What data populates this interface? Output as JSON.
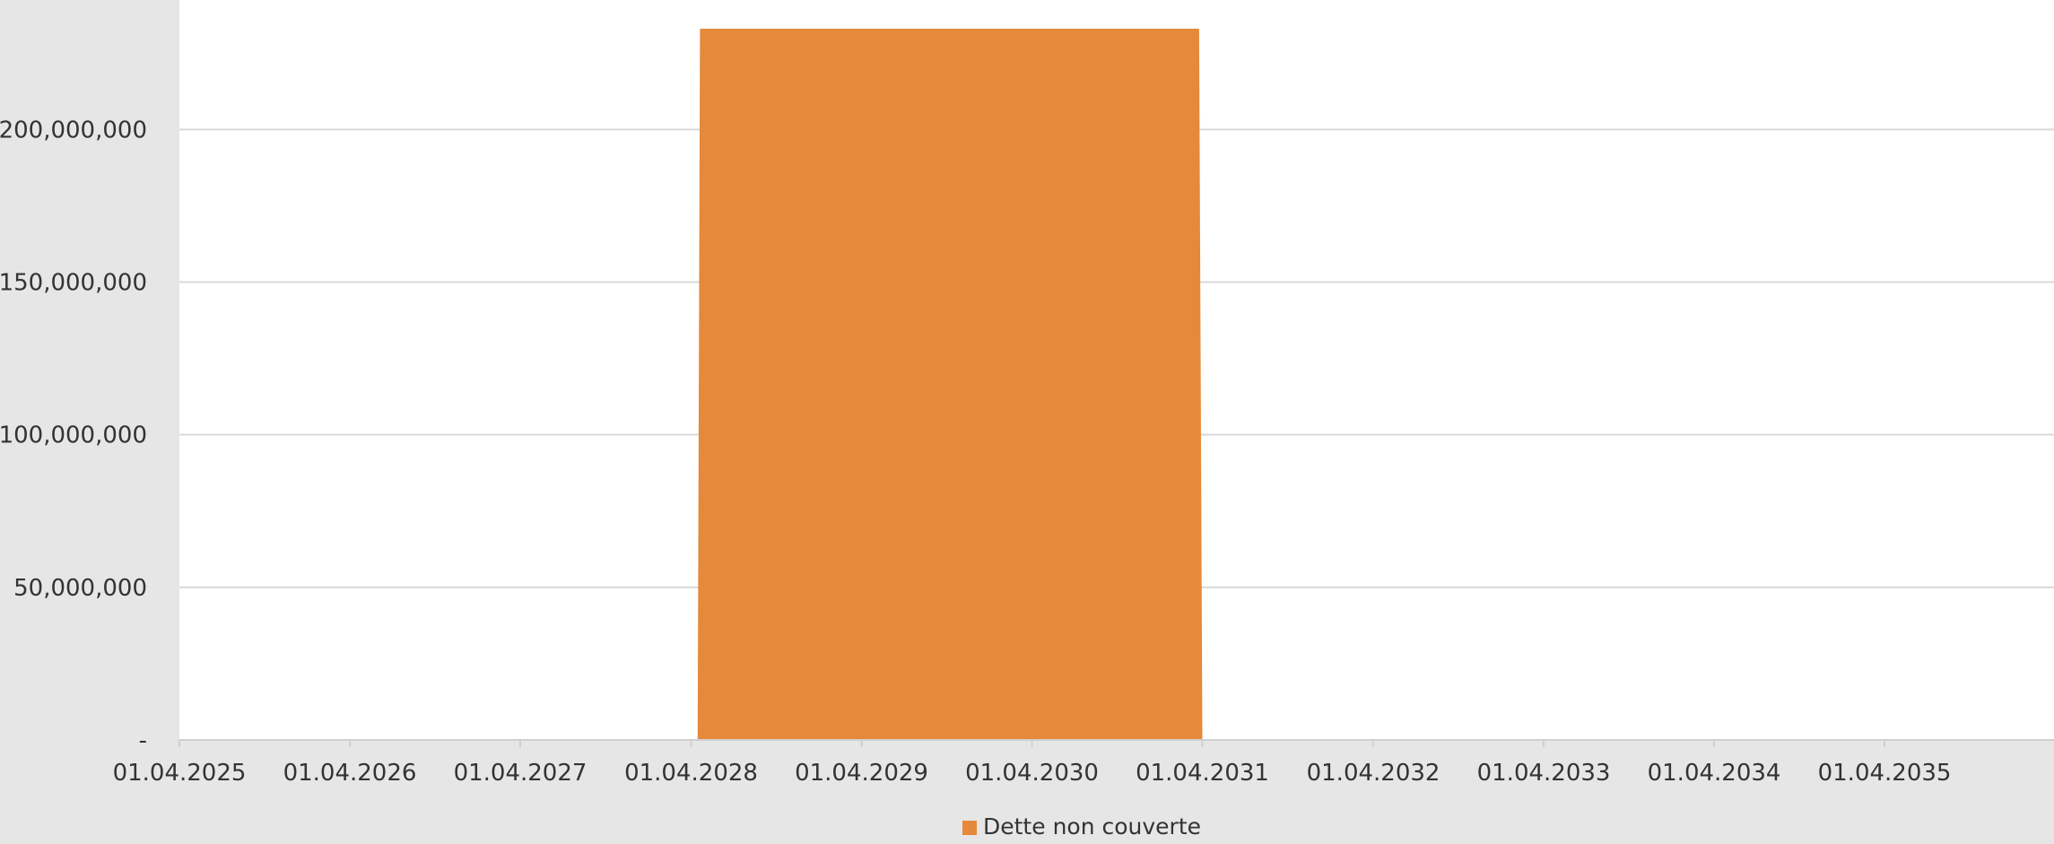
{
  "chart_data": {
    "type": "area",
    "title": "",
    "xlabel": "",
    "ylabel": "",
    "x_axis": {
      "type": "date",
      "range": [
        "2025-04-01",
        "2036-03-01"
      ],
      "ticks": [
        "01.04.2025",
        "01.04.2026",
        "01.04.2027",
        "01.04.2028",
        "01.04.2029",
        "01.04.2030",
        "01.04.2031",
        "01.04.2032",
        "01.04.2033",
        "01.04.2034",
        "01.04.2035"
      ]
    },
    "y_axis": {
      "range": [
        0,
        233000000
      ],
      "ticks": [
        0,
        50000000,
        100000000,
        150000000,
        200000000
      ],
      "tick_labels": [
        "-",
        "50,000,000",
        "100,000,000",
        "150,000,000",
        "200,000,000"
      ]
    },
    "grid": {
      "horizontal": true,
      "vertical": false
    },
    "legend": {
      "placement": "bottom-center"
    },
    "series": [
      {
        "name": "Dette non couverte",
        "color": "#e5893a",
        "points": [
          {
            "x": "2028-04-01",
            "y": 0
          },
          {
            "x": "2028-04-15",
            "y": 0
          },
          {
            "x": "2028-04-20",
            "y": 233000000
          },
          {
            "x": "2031-03-25",
            "y": 233000000
          },
          {
            "x": "2031-04-01",
            "y": 0
          }
        ]
      }
    ]
  },
  "colors": {
    "background": "#e6e6e6",
    "plot_background": "#ffffff",
    "gridline": "#d9d9d9",
    "text": "#333333"
  }
}
